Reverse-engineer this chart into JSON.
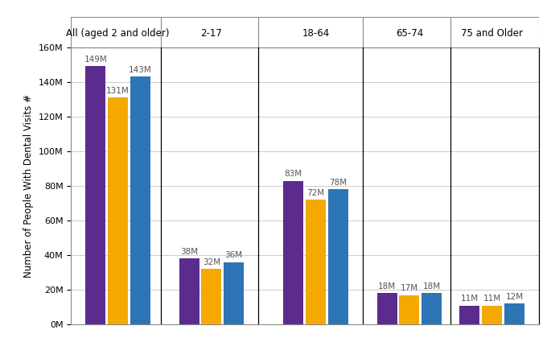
{
  "groups": [
    "All (aged 2 and older)",
    "2-17",
    "18-64",
    "65-74",
    "75 and Older"
  ],
  "series": {
    "2019": [
      149,
      38,
      83,
      18,
      11
    ],
    "2020": [
      131,
      32,
      72,
      17,
      11
    ],
    "2021": [
      143,
      36,
      78,
      18,
      12
    ]
  },
  "colors": {
    "2019": "#5B2C8D",
    "2020": "#F5A800",
    "2021": "#2E75B6"
  },
  "ylabel": "Number of People With Dental Visits #",
  "ylim": [
    0,
    160
  ],
  "yticks": [
    0,
    20,
    40,
    60,
    80,
    100,
    120,
    140,
    160
  ],
  "ytick_labels": [
    "0M",
    "20M",
    "40M",
    "60M",
    "80M",
    "100M",
    "120M",
    "140M",
    "160M"
  ],
  "bar_width": 0.28,
  "background_color": "#FFFFFF",
  "grid_color": "#CCCCCC",
  "label_fontsize": 7.5,
  "axis_label_fontsize": 8.5,
  "group_label_fontsize": 8.5,
  "divider_color": "#000000",
  "border_color": "#888888",
  "group_centers": [
    0.6,
    1.9,
    3.35,
    4.65,
    5.8
  ],
  "dividers": [
    1.2,
    2.55,
    4.0,
    5.22
  ],
  "xlim": [
    -0.05,
    6.45
  ]
}
